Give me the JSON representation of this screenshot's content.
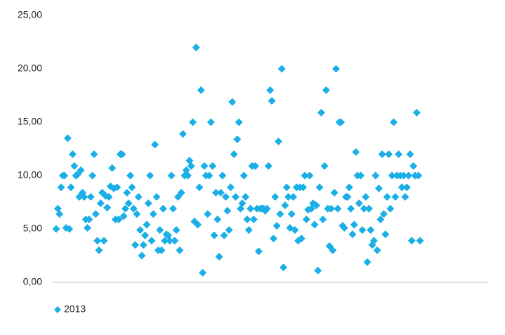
{
  "chart_data": {
    "type": "scatter",
    "ylim": [
      0,
      25
    ],
    "yticks": [
      {
        "value": 0,
        "label": "0,00"
      },
      {
        "value": 5,
        "label": "5,00"
      },
      {
        "value": 10,
        "label": "10,00"
      },
      {
        "value": 15,
        "label": "15,00"
      },
      {
        "value": 20,
        "label": "20,00"
      },
      {
        "value": 25,
        "label": "25,00"
      }
    ],
    "grid": false,
    "legend": "bottom-left",
    "series": [
      {
        "name": "2013",
        "color": "#1aafe6",
        "values": [
          5.0,
          6.9,
          6.4,
          8.9,
          10,
          10,
          5.1,
          13.5,
          5.0,
          8.9,
          12,
          10.9,
          10,
          10.1,
          8.0,
          10.5,
          8.4,
          8.0,
          5.9,
          5.1,
          5.9,
          8.0,
          10,
          12,
          6.4,
          3.9,
          3.0,
          7.4,
          8.4,
          3.9,
          8.1,
          7.0,
          8.0,
          9.0,
          10.7,
          8.8,
          5.9,
          8.9,
          5.9,
          12,
          12,
          6.2,
          6.9,
          8.4,
          7.4,
          10,
          8.9,
          6.9,
          3.5,
          6.4,
          8.0,
          4.9,
          2.5,
          3.5,
          4.4,
          5.4,
          7.4,
          10,
          3.9,
          6.4,
          12.9,
          8.0,
          3.0,
          4.9,
          3.0,
          6.9,
          3.9,
          4.5,
          4.4,
          3.9,
          10,
          6.9,
          3.9,
          4.9,
          8.0,
          3.0,
          8.4,
          13.9,
          10,
          10.5,
          10,
          11.4,
          10.9,
          15,
          5.7,
          22,
          5.4,
          8.9,
          18,
          0.9,
          10.9,
          10,
          6.4,
          10,
          15,
          10.9,
          4.4,
          8.4,
          5.9,
          2.4,
          8.4,
          10,
          4.4,
          8.0,
          6.7,
          4.9,
          8.9,
          16.9,
          12,
          8.0,
          13.4,
          15,
          6.9,
          7.4,
          10,
          8.0,
          5.9,
          4.9,
          6.9,
          10.9,
          5.9,
          10.9,
          6.9,
          2.9,
          6.9,
          6.9,
          6.9,
          6.7,
          6.9,
          10.9,
          18,
          17,
          4.1,
          8.0,
          5.3,
          13.2,
          6.4,
          20,
          1.4,
          7.2,
          8.9,
          8.0,
          5.1,
          6.4,
          8.0,
          4.9,
          8.9,
          3.9,
          8.9,
          4.1,
          8.9,
          10,
          5.9,
          6.8,
          10,
          6.9,
          7.4,
          5.4,
          7.2,
          1.1,
          8.9,
          15.9,
          5.9,
          10.9,
          18,
          6.9,
          3.4,
          6.9,
          3.0,
          8.4,
          20,
          6.9,
          15,
          15,
          5.3,
          5.1,
          8.0,
          8.0,
          8.9,
          6.9,
          4.5,
          5.4,
          12.2,
          10,
          7.4,
          10,
          4.9,
          6.9,
          8.0,
          1.9,
          6.9,
          4.9,
          3.5,
          3.9,
          10,
          3.0,
          8.8,
          5.9,
          12,
          6.4,
          4.5,
          8.0,
          12,
          6.9,
          10,
          15,
          8.0,
          10,
          12,
          10,
          8.9,
          10,
          8.0,
          8.9,
          10,
          12,
          3.9,
          10.9,
          10,
          15.9,
          10,
          3.9
        ]
      }
    ]
  }
}
